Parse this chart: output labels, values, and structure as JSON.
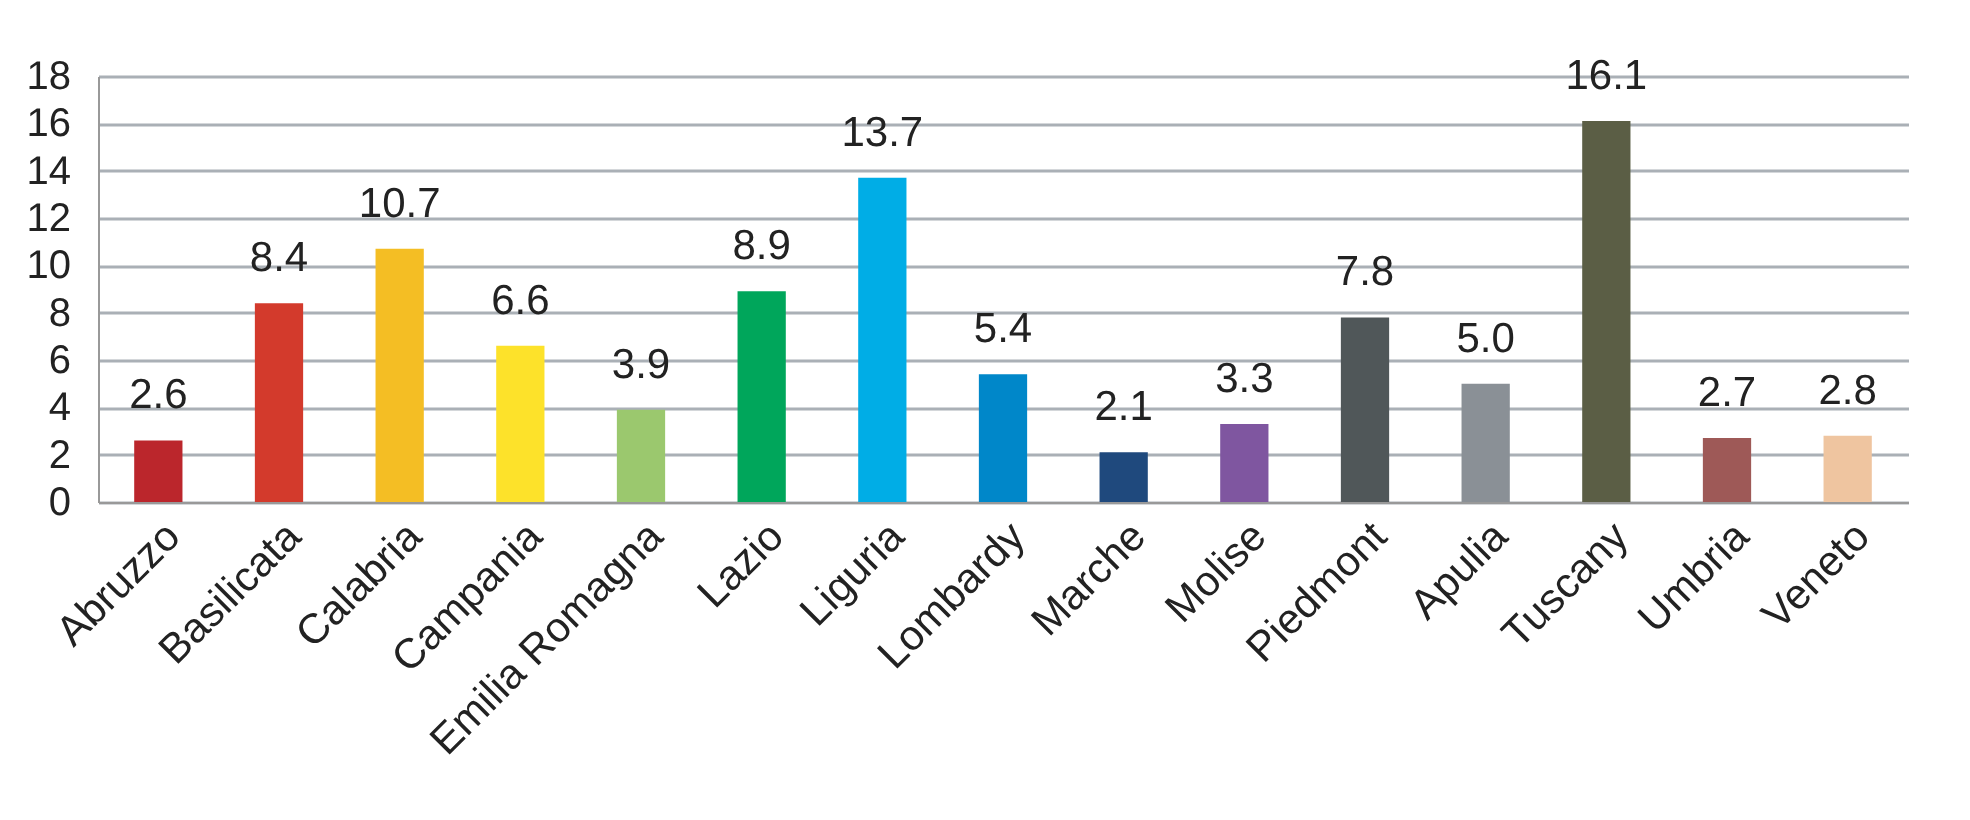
{
  "chart_data": {
    "type": "bar",
    "categories": [
      "Abruzzo",
      "Basilicata",
      "Calabria",
      "Campania",
      "Emilia Romagna",
      "Lazio",
      "Liguria",
      "Lombardy",
      "Marche",
      "Molise",
      "Piedmont",
      "Apulia",
      "Tuscany",
      "Umbria",
      "Veneto"
    ],
    "values": [
      2.6,
      8.4,
      10.7,
      6.6,
      3.9,
      8.9,
      13.7,
      5.4,
      2.1,
      3.3,
      7.8,
      5.0,
      16.1,
      2.7,
      2.8
    ],
    "value_labels": [
      "2.6",
      "8.4",
      "10.7",
      "6.6",
      "3.9",
      "8.9",
      "13.7",
      "5.4",
      "2.1",
      "3.3",
      "7.8",
      "5.0",
      "16.1",
      "2.7",
      "2.8"
    ],
    "colors": [
      "#bb262c",
      "#d33a2c",
      "#f4be24",
      "#fde22a",
      "#9bc86e",
      "#00a65b",
      "#00ade6",
      "#0087c9",
      "#1f497d",
      "#7f56a0",
      "#505759",
      "#8a9096",
      "#5b5e45",
      "#9e5957",
      "#efc5a0"
    ],
    "ylim": [
      0,
      18
    ],
    "yticks": [
      0,
      2,
      4,
      6,
      8,
      10,
      12,
      14,
      16,
      18
    ],
    "grid": "y"
  }
}
